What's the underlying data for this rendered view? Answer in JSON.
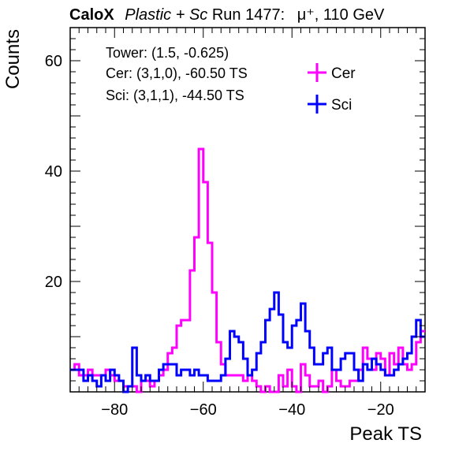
{
  "title": {
    "experiment": "CaloX",
    "detector": "Plastic + Sc",
    "run": "Run 1477:",
    "beam": "μ⁺, 110 GeV"
  },
  "info": {
    "tower": "Tower: (1.5, -0.625)",
    "cer": "Cer: (3,1,0), -60.50 TS",
    "sci": "Sci: (3,1,1), -44.50 TS"
  },
  "chart_data": {
    "type": "histogram",
    "xlabel": "Peak TS",
    "ylabel": "Counts",
    "xlim": [
      -90,
      -10
    ],
    "ylim": [
      0,
      66
    ],
    "x_ticks": [
      -80,
      -60,
      -40,
      -20
    ],
    "y_ticks": [
      20,
      40,
      60
    ],
    "bin_width": 1,
    "bin_low_edges": [
      -90,
      -89,
      -88,
      -87,
      -86,
      -85,
      -84,
      -83,
      -82,
      -81,
      -80,
      -79,
      -78,
      -77,
      -76,
      -75,
      -74,
      -73,
      -72,
      -71,
      -70,
      -69,
      -68,
      -67,
      -66,
      -65,
      -64,
      -63,
      -62,
      -61,
      -60,
      -59,
      -58,
      -57,
      -56,
      -55,
      -54,
      -53,
      -52,
      -51,
      -50,
      -49,
      -48,
      -47,
      -46,
      -45,
      -44,
      -43,
      -42,
      -41,
      -40,
      -39,
      -38,
      -37,
      -36,
      -35,
      -34,
      -33,
      -32,
      -31,
      -30,
      -29,
      -28,
      -27,
      -26,
      -25,
      -24,
      -23,
      -22,
      -21,
      -20,
      -19,
      -18,
      -17,
      -16,
      -15,
      -14,
      -13,
      -12,
      -11
    ],
    "series": [
      {
        "name": "Cer",
        "color": "#ff00ff",
        "values": [
          4,
          5,
          3,
          3,
          4,
          3,
          3,
          3,
          4,
          3,
          2,
          2,
          1,
          1,
          1,
          0,
          2,
          2,
          1,
          2,
          3,
          4,
          7,
          8,
          12,
          13,
          13,
          22,
          28,
          44,
          38,
          27,
          18,
          9,
          5,
          3,
          3,
          3,
          3,
          2,
          3,
          2,
          1,
          0,
          1,
          0,
          0,
          3,
          1,
          4,
          1,
          0,
          5,
          3,
          1,
          1,
          2,
          0,
          1,
          4,
          2,
          1,
          1,
          2,
          2,
          4,
          8,
          6,
          4,
          7,
          6,
          3,
          7,
          5,
          8,
          5,
          4,
          5,
          9,
          11
        ]
      },
      {
        "name": "Sci",
        "color": "#0000ff",
        "values": [
          4,
          4,
          4,
          2,
          3,
          2,
          1,
          3,
          2,
          4,
          3,
          2,
          0,
          1,
          8,
          3,
          2,
          3,
          2,
          2,
          4,
          5,
          5,
          5,
          3,
          4,
          4,
          3,
          4,
          3,
          3,
          2,
          2,
          2,
          3,
          6,
          11,
          10,
          9,
          6,
          3,
          4,
          7,
          9,
          13,
          15,
          18,
          14,
          9,
          8,
          12,
          13,
          16,
          11,
          8,
          5,
          5,
          7,
          8,
          4,
          4,
          6,
          7,
          7,
          4,
          2,
          5,
          4,
          6,
          5,
          4,
          3,
          3,
          4,
          5,
          6,
          7,
          10,
          13,
          10
        ]
      }
    ]
  }
}
